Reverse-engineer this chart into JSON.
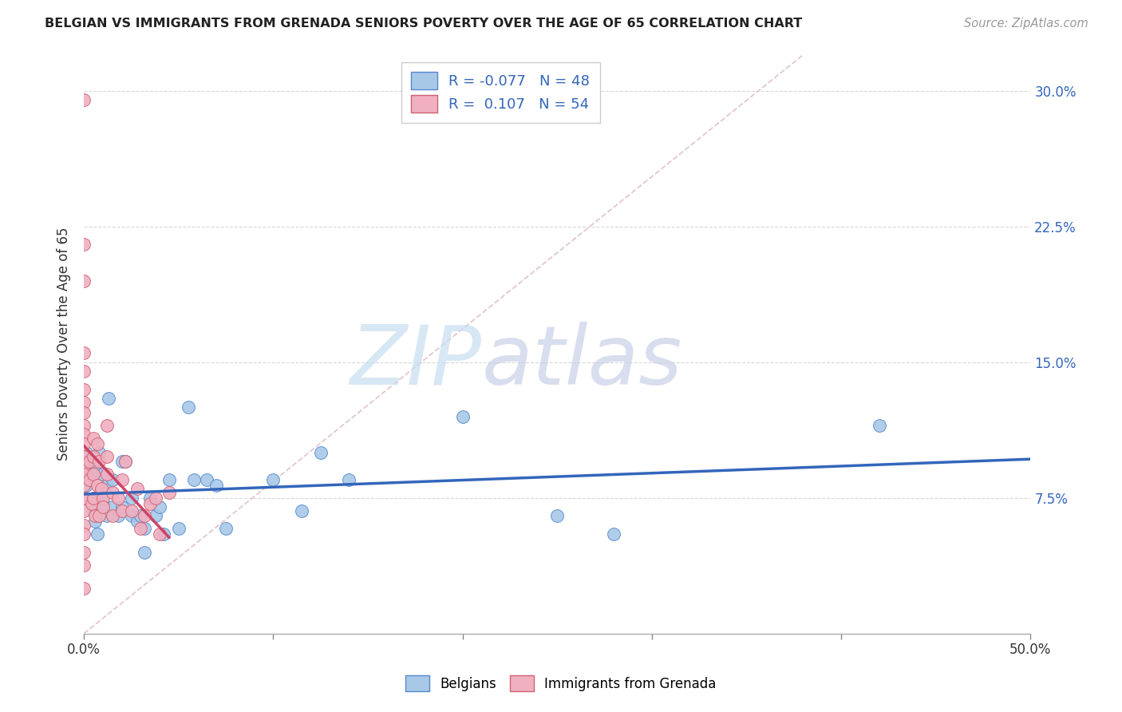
{
  "title": "BELGIAN VS IMMIGRANTS FROM GRENADA SENIORS POVERTY OVER THE AGE OF 65 CORRELATION CHART",
  "source": "Source: ZipAtlas.com",
  "ylabel": "Seniors Poverty Over the Age of 65",
  "xlim": [
    0.0,
    0.5
  ],
  "ylim": [
    0.0,
    0.32
  ],
  "legend_r_blue": "-0.077",
  "legend_n_blue": "48",
  "legend_r_pink": "0.107",
  "legend_n_pink": "54",
  "blue_scatter_fill": "#a8c8e8",
  "blue_scatter_edge": "#5588cc",
  "pink_scatter_fill": "#f0b0c0",
  "pink_scatter_edge": "#d06070",
  "trendline_blue_color": "#3366bb",
  "trendline_pink_color": "#cc4466",
  "diagonal_color": "#e0c0c8",
  "watermark_zip_color": "#c8ddf0",
  "watermark_atlas_color": "#c8d0e8",
  "blue_points": [
    [
      0.001,
      0.092
    ],
    [
      0.001,
      0.082
    ],
    [
      0.001,
      0.1
    ],
    [
      0.003,
      0.085
    ],
    [
      0.004,
      0.092
    ],
    [
      0.005,
      0.075
    ],
    [
      0.005,
      0.068
    ],
    [
      0.006,
      0.09
    ],
    [
      0.006,
      0.062
    ],
    [
      0.007,
      0.055
    ],
    [
      0.008,
      0.1
    ],
    [
      0.009,
      0.075
    ],
    [
      0.01,
      0.088
    ],
    [
      0.01,
      0.072
    ],
    [
      0.012,
      0.082
    ],
    [
      0.012,
      0.065
    ],
    [
      0.013,
      0.13
    ],
    [
      0.015,
      0.085
    ],
    [
      0.015,
      0.07
    ],
    [
      0.018,
      0.065
    ],
    [
      0.02,
      0.07
    ],
    [
      0.02,
      0.095
    ],
    [
      0.022,
      0.095
    ],
    [
      0.025,
      0.075
    ],
    [
      0.025,
      0.065
    ],
    [
      0.028,
      0.062
    ],
    [
      0.03,
      0.065
    ],
    [
      0.032,
      0.058
    ],
    [
      0.032,
      0.045
    ],
    [
      0.035,
      0.075
    ],
    [
      0.038,
      0.065
    ],
    [
      0.04,
      0.07
    ],
    [
      0.042,
      0.055
    ],
    [
      0.045,
      0.085
    ],
    [
      0.05,
      0.058
    ],
    [
      0.055,
      0.125
    ],
    [
      0.058,
      0.085
    ],
    [
      0.065,
      0.085
    ],
    [
      0.07,
      0.082
    ],
    [
      0.075,
      0.058
    ],
    [
      0.1,
      0.085
    ],
    [
      0.115,
      0.068
    ],
    [
      0.125,
      0.1
    ],
    [
      0.14,
      0.085
    ],
    [
      0.2,
      0.12
    ],
    [
      0.25,
      0.065
    ],
    [
      0.28,
      0.055
    ],
    [
      0.42,
      0.115
    ]
  ],
  "pink_points": [
    [
      0.0,
      0.295
    ],
    [
      0.0,
      0.215
    ],
    [
      0.0,
      0.195
    ],
    [
      0.0,
      0.155
    ],
    [
      0.0,
      0.145
    ],
    [
      0.0,
      0.135
    ],
    [
      0.0,
      0.128
    ],
    [
      0.0,
      0.122
    ],
    [
      0.0,
      0.115
    ],
    [
      0.0,
      0.11
    ],
    [
      0.0,
      0.105
    ],
    [
      0.0,
      0.098
    ],
    [
      0.0,
      0.092
    ],
    [
      0.0,
      0.088
    ],
    [
      0.0,
      0.082
    ],
    [
      0.0,
      0.075
    ],
    [
      0.0,
      0.068
    ],
    [
      0.0,
      0.06
    ],
    [
      0.0,
      0.055
    ],
    [
      0.0,
      0.045
    ],
    [
      0.0,
      0.038
    ],
    [
      0.0,
      0.025
    ],
    [
      0.003,
      0.095
    ],
    [
      0.003,
      0.085
    ],
    [
      0.004,
      0.072
    ],
    [
      0.005,
      0.108
    ],
    [
      0.005,
      0.098
    ],
    [
      0.005,
      0.088
    ],
    [
      0.005,
      0.075
    ],
    [
      0.006,
      0.065
    ],
    [
      0.007,
      0.105
    ],
    [
      0.007,
      0.082
    ],
    [
      0.008,
      0.095
    ],
    [
      0.008,
      0.065
    ],
    [
      0.009,
      0.08
    ],
    [
      0.01,
      0.075
    ],
    [
      0.01,
      0.07
    ],
    [
      0.012,
      0.115
    ],
    [
      0.012,
      0.098
    ],
    [
      0.012,
      0.088
    ],
    [
      0.015,
      0.078
    ],
    [
      0.015,
      0.065
    ],
    [
      0.018,
      0.075
    ],
    [
      0.02,
      0.085
    ],
    [
      0.02,
      0.068
    ],
    [
      0.022,
      0.095
    ],
    [
      0.025,
      0.068
    ],
    [
      0.028,
      0.08
    ],
    [
      0.03,
      0.058
    ],
    [
      0.032,
      0.065
    ],
    [
      0.035,
      0.072
    ],
    [
      0.038,
      0.075
    ],
    [
      0.04,
      0.055
    ],
    [
      0.045,
      0.078
    ]
  ]
}
